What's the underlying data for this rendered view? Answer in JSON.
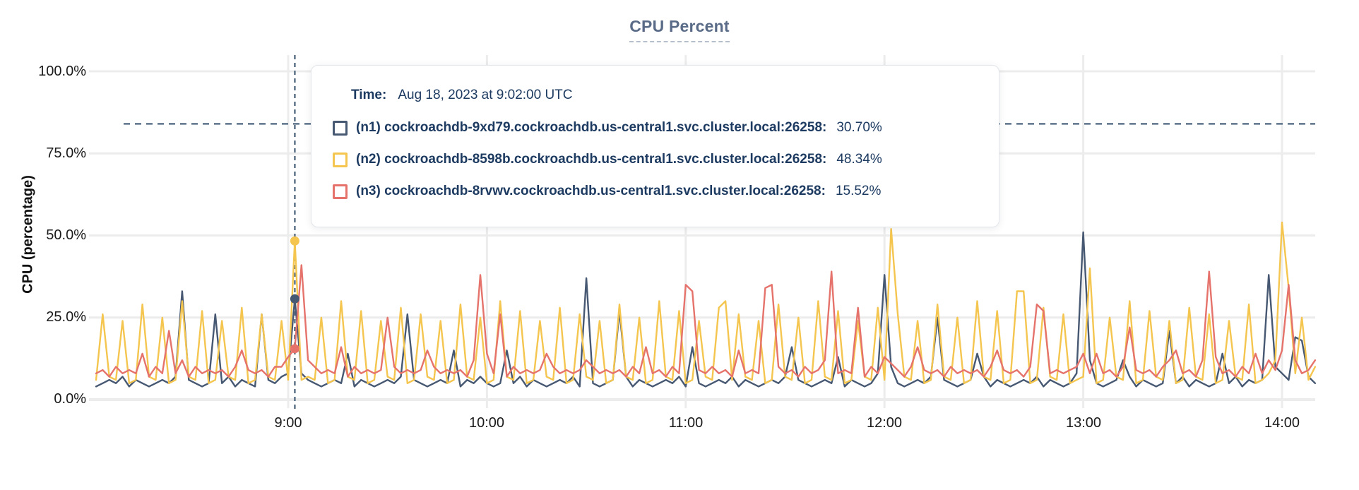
{
  "title": "CPU Percent",
  "tooltip": {
    "time_label": "Time:",
    "time_value": "Aug 18, 2023 at 9:02:00 UTC",
    "rows": [
      {
        "node": "n1",
        "label": "(n1) cockroachdb-9xd79.cockroachdb.us-central1.svc.cluster.local:26258:",
        "value": "30.70%",
        "color": "#475872"
      },
      {
        "node": "n2",
        "label": "(n2) cockroachdb-8598b.cockroachdb.us-central1.svc.cluster.local:26258:",
        "value": "48.34%",
        "color": "#f5c64f"
      },
      {
        "node": "n3",
        "label": "(n3) cockroachdb-8rvwv.cockroachdb.us-central1.svc.cluster.local:26258:",
        "value": "15.52%",
        "color": "#e5736c"
      }
    ]
  },
  "colors": {
    "n1_line": "#475872",
    "n2_line": "#f5c64f",
    "n3_line": "#e5736c",
    "grid": "#ececec",
    "axis_text": "#1a1a1a",
    "title_text": "#5a6b87",
    "tooltip_text": "#1d3a61",
    "dashed_guides": "#5d7389"
  },
  "chart_data": {
    "type": "line",
    "title": "CPU Percent",
    "xlabel": "",
    "ylabel": "CPU (percentage)",
    "ylim": [
      0,
      100
    ],
    "grid": true,
    "y_ticks": [
      "100.0%",
      "75.0%",
      "50.0%",
      "25.0%",
      "0.0%"
    ],
    "y_tick_values": [
      100,
      75,
      50,
      25,
      0
    ],
    "x_ticks": [
      "9:00",
      "10:00",
      "11:00",
      "12:00",
      "13:00",
      "14:00"
    ],
    "x_tick_minutes": [
      540,
      600,
      660,
      720,
      780,
      840
    ],
    "x_start_minute": 482,
    "x_step_minutes": 2,
    "x_range_label": "8:02 to 14:10 UTC",
    "threshold_line_percent": 84,
    "hover": {
      "x_minute": 542,
      "time": "9:02",
      "dot_values": {
        "n1": 30.7,
        "n2": 48.34,
        "n3": 15.52
      }
    },
    "series": [
      {
        "name": "n1",
        "color": "#475872",
        "values": [
          4,
          5,
          6,
          5,
          7,
          4,
          6,
          5,
          4,
          5,
          6,
          5,
          7,
          33,
          6,
          5,
          4,
          5,
          26,
          5,
          7,
          4,
          6,
          5,
          4,
          26,
          6,
          5,
          7,
          8,
          30.7,
          8,
          6,
          5,
          4,
          5,
          6,
          5,
          14,
          4,
          6,
          5,
          4,
          5,
          6,
          5,
          7,
          26,
          6,
          5,
          4,
          5,
          6,
          5,
          15,
          4,
          6,
          5,
          7,
          5,
          4,
          5,
          15,
          5,
          7,
          4,
          6,
          5,
          4,
          5,
          6,
          5,
          7,
          4,
          37,
          5,
          4,
          5,
          6,
          27,
          7,
          4,
          6,
          5,
          4,
          5,
          6,
          5,
          7,
          4,
          16,
          5,
          4,
          5,
          6,
          5,
          7,
          4,
          6,
          5,
          4,
          5,
          6,
          5,
          7,
          16,
          6,
          5,
          4,
          5,
          6,
          5,
          13,
          4,
          6,
          5,
          4,
          5,
          8,
          38,
          10,
          5,
          4,
          5,
          6,
          5,
          7,
          25,
          6,
          5,
          4,
          5,
          6,
          14,
          7,
          4,
          6,
          5,
          4,
          5,
          6,
          5,
          7,
          4,
          6,
          5,
          4,
          5,
          8,
          51,
          12,
          5,
          4,
          5,
          6,
          12,
          7,
          4,
          6,
          5,
          4,
          5,
          21,
          5,
          7,
          4,
          6,
          5,
          4,
          5,
          14,
          5,
          7,
          4,
          6,
          5,
          6,
          38,
          10,
          8,
          6,
          19,
          18,
          7,
          5
        ]
      },
      {
        "name": "n2",
        "color": "#f5c64f",
        "values": [
          6,
          26,
          7,
          6,
          24,
          5,
          6,
          29,
          7,
          6,
          25,
          5,
          6,
          30,
          7,
          6,
          27,
          5,
          6,
          24,
          7,
          6,
          28,
          5,
          6,
          26,
          7,
          6,
          24,
          6,
          48.34,
          6,
          7,
          6,
          25,
          5,
          6,
          30,
          7,
          6,
          27,
          5,
          6,
          24,
          7,
          6,
          28,
          5,
          6,
          26,
          7,
          6,
          24,
          5,
          6,
          29,
          7,
          6,
          25,
          5,
          6,
          30,
          7,
          6,
          27,
          5,
          6,
          24,
          7,
          6,
          28,
          5,
          6,
          26,
          7,
          6,
          24,
          5,
          6,
          29,
          7,
          6,
          25,
          5,
          6,
          30,
          7,
          6,
          27,
          5,
          6,
          24,
          7,
          6,
          28,
          30,
          6,
          26,
          7,
          6,
          24,
          5,
          6,
          29,
          7,
          6,
          25,
          5,
          6,
          30,
          7,
          6,
          27,
          5,
          6,
          24,
          7,
          6,
          28,
          6,
          52,
          26,
          7,
          6,
          24,
          5,
          6,
          29,
          7,
          6,
          25,
          5,
          6,
          30,
          7,
          6,
          27,
          5,
          6,
          33,
          33,
          5,
          6,
          28,
          7,
          6,
          26,
          5,
          6,
          7,
          40,
          5,
          6,
          25,
          7,
          6,
          30,
          5,
          6,
          27,
          7,
          6,
          24,
          5,
          6,
          28,
          7,
          6,
          26,
          5,
          6,
          24,
          7,
          6,
          29,
          5,
          6,
          8,
          12,
          54,
          34,
          8,
          25,
          6,
          10
        ]
      },
      {
        "name": "n3",
        "color": "#e5736c",
        "values": [
          8,
          9,
          7,
          10,
          8,
          9,
          8,
          14,
          7,
          10,
          8,
          21,
          8,
          12,
          7,
          10,
          8,
          9,
          8,
          9,
          7,
          10,
          15,
          9,
          8,
          9,
          7,
          10,
          10,
          13,
          15.52,
          41,
          12,
          10,
          8,
          9,
          8,
          16,
          7,
          10,
          8,
          9,
          8,
          9,
          25,
          10,
          8,
          9,
          8,
          9,
          15,
          10,
          8,
          9,
          8,
          9,
          7,
          12,
          38,
          14,
          8,
          26,
          7,
          10,
          8,
          9,
          8,
          9,
          14,
          10,
          8,
          9,
          8,
          9,
          12,
          10,
          8,
          9,
          8,
          9,
          7,
          10,
          8,
          16,
          8,
          9,
          7,
          10,
          8,
          35,
          33,
          9,
          8,
          10,
          8,
          9,
          7,
          15,
          8,
          9,
          8,
          34,
          35,
          10,
          8,
          9,
          7,
          10,
          8,
          9,
          12,
          39,
          8,
          9,
          8,
          28,
          7,
          10,
          8,
          13,
          11,
          9,
          7,
          10,
          16,
          9,
          8,
          9,
          7,
          10,
          8,
          9,
          8,
          9,
          7,
          10,
          15,
          9,
          8,
          9,
          7,
          10,
          29,
          27,
          8,
          9,
          8,
          9,
          10,
          14,
          8,
          14,
          8,
          9,
          7,
          10,
          22,
          9,
          8,
          9,
          7,
          10,
          12,
          15,
          8,
          9,
          7,
          12,
          39,
          13,
          8,
          9,
          7,
          10,
          8,
          14,
          8,
          12,
          9,
          15,
          35,
          12,
          8,
          9,
          12
        ]
      }
    ]
  }
}
